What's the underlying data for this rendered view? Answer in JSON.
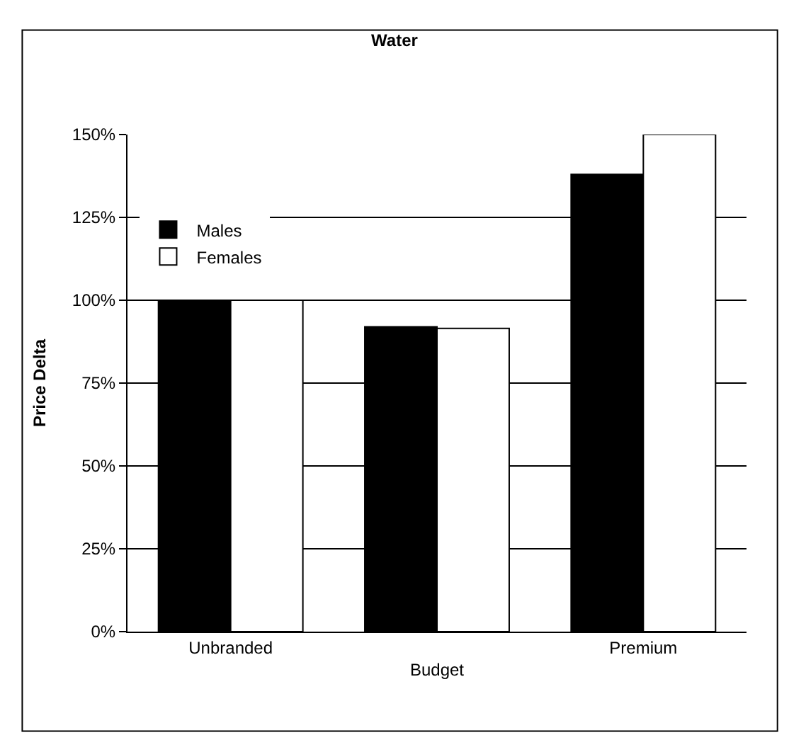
{
  "chart_data": {
    "type": "bar",
    "title": "Water",
    "ylabel": "Price Delta",
    "categories": [
      "Unbranded",
      "Budget",
      "Premium"
    ],
    "series": [
      {
        "name": "Males",
        "color": "#000000",
        "values": [
          100,
          92,
          138
        ]
      },
      {
        "name": "Females",
        "color": "#ffffff",
        "values": [
          100,
          91.5,
          150
        ]
      }
    ],
    "ylim": [
      0,
      150
    ],
    "yticks": [
      {
        "value": 0,
        "label": "0%"
      },
      {
        "value": 25,
        "label": "25%"
      },
      {
        "value": 50,
        "label": "50%"
      },
      {
        "value": 75,
        "label": "75%"
      },
      {
        "value": 100,
        "label": "100%"
      },
      {
        "value": 125,
        "label": "125%"
      },
      {
        "value": 150,
        "label": "150%"
      }
    ],
    "grid": "y",
    "legend": "top left"
  }
}
